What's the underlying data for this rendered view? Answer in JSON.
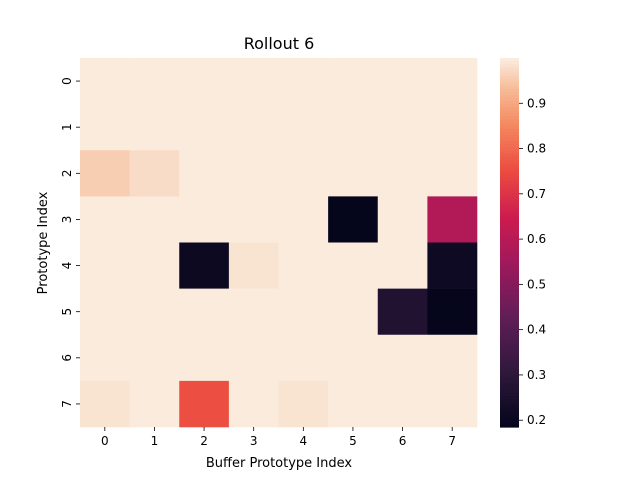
{
  "chart_data": {
    "type": "heatmap",
    "title": "Rollout 6",
    "xlabel": "Buffer Prototype Index",
    "ylabel": "Prototype Index",
    "x_categories": [
      "0",
      "1",
      "2",
      "3",
      "4",
      "5",
      "6",
      "7"
    ],
    "y_categories": [
      "0",
      "1",
      "2",
      "3",
      "4",
      "5",
      "6",
      "7"
    ],
    "values": [
      [
        1.0,
        1.0,
        1.0,
        1.0,
        1.0,
        1.0,
        1.0,
        1.0
      ],
      [
        1.0,
        1.0,
        1.0,
        1.0,
        1.0,
        1.0,
        1.0,
        1.0
      ],
      [
        0.96,
        0.98,
        1.0,
        1.0,
        1.0,
        1.0,
        1.0,
        1.0
      ],
      [
        1.0,
        1.0,
        1.0,
        1.0,
        1.0,
        0.19,
        1.0,
        0.59
      ],
      [
        1.0,
        1.0,
        0.21,
        0.99,
        1.0,
        1.0,
        1.0,
        0.22
      ],
      [
        1.0,
        1.0,
        1.0,
        1.0,
        1.0,
        1.0,
        0.27,
        0.19
      ],
      [
        1.0,
        1.0,
        1.0,
        1.0,
        1.0,
        1.0,
        1.0,
        1.0
      ],
      [
        0.99,
        1.0,
        0.76,
        1.0,
        0.99,
        1.0,
        1.0,
        1.0
      ]
    ],
    "colorbar": {
      "min": 0.185,
      "max": 1.0,
      "ticks": [
        "0.2",
        "0.3",
        "0.4",
        "0.5",
        "0.6",
        "0.7",
        "0.8",
        "0.9"
      ],
      "colormap": "rocket"
    }
  }
}
